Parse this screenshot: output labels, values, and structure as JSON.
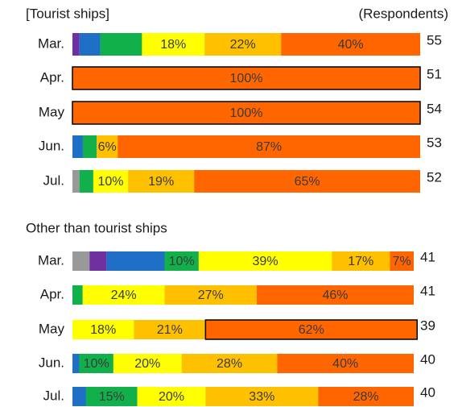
{
  "chart_data": [
    {
      "type": "stacked-barh",
      "title": "[Tourist ships]",
      "respondents_label": "(Respondents)",
      "categories": [
        "Mar.",
        "Apr.",
        "May",
        "Jun.",
        "Jul."
      ],
      "respondents": [
        55,
        51,
        54,
        53,
        52
      ],
      "xlim": [
        0,
        100
      ],
      "series": [
        {
          "color": "#999999",
          "values": [
            0,
            0,
            0,
            0,
            2
          ],
          "value_labels": [
            null,
            null,
            null,
            null,
            null
          ]
        },
        {
          "color": "#7030a0",
          "values": [
            2,
            0,
            0,
            0,
            0
          ],
          "value_labels": [
            null,
            null,
            null,
            null,
            null
          ]
        },
        {
          "color": "#1f6fc6",
          "values": [
            6,
            0,
            0,
            3,
            0
          ],
          "value_labels": [
            null,
            null,
            null,
            null,
            null
          ]
        },
        {
          "color": "#12b04b",
          "values": [
            12,
            0,
            0,
            4,
            4
          ],
          "value_labels": [
            null,
            null,
            null,
            null,
            null
          ]
        },
        {
          "color": "#ffff00",
          "values": [
            18,
            0,
            0,
            0,
            10
          ],
          "value_labels": [
            "18%",
            null,
            null,
            null,
            "10%"
          ]
        },
        {
          "color": "#ffc000",
          "values": [
            22,
            0,
            0,
            6,
            19
          ],
          "value_labels": [
            "22%",
            null,
            null,
            "6%",
            "19%"
          ]
        },
        {
          "color": "#ff6600",
          "values": [
            40,
            100,
            100,
            87,
            65
          ],
          "value_labels": [
            "40%",
            "100%",
            "100%",
            "87%",
            "65%"
          ]
        }
      ],
      "highlight": [
        {
          "series": 6,
          "category": 1
        },
        {
          "series": 6,
          "category": 2
        }
      ]
    },
    {
      "type": "stacked-barh",
      "title": "Other than tourist ships",
      "categories": [
        "Mar.",
        "Apr.",
        "May",
        "Jun.",
        "Jul."
      ],
      "respondents": [
        41,
        41,
        39,
        40,
        40
      ],
      "xlim": [
        0,
        100
      ],
      "series": [
        {
          "color": "#999999",
          "values": [
            5,
            0,
            0,
            0,
            0
          ],
          "value_labels": [
            null,
            null,
            null,
            null,
            null
          ]
        },
        {
          "color": "#7030a0",
          "values": [
            5,
            0,
            0,
            0,
            0
          ],
          "value_labels": [
            null,
            null,
            null,
            null,
            null
          ]
        },
        {
          "color": "#1f6fc6",
          "values": [
            17,
            0,
            0,
            2,
            4
          ],
          "value_labels": [
            null,
            null,
            null,
            null,
            null
          ]
        },
        {
          "color": "#12b04b",
          "values": [
            10,
            3,
            0,
            10,
            15
          ],
          "value_labels": [
            "10%",
            null,
            null,
            "10%",
            "15%"
          ]
        },
        {
          "color": "#ffff00",
          "values": [
            39,
            24,
            18,
            20,
            20
          ],
          "value_labels": [
            "39%",
            "24%",
            "18%",
            "20%",
            "20%"
          ]
        },
        {
          "color": "#ffc000",
          "values": [
            17,
            27,
            21,
            28,
            33
          ],
          "value_labels": [
            "17%",
            "27%",
            "21%",
            "28%",
            "33%"
          ]
        },
        {
          "color": "#ff6600",
          "values": [
            7,
            46,
            62,
            40,
            28
          ],
          "value_labels": [
            "7%",
            "46%",
            "62%",
            "40%",
            "28%"
          ]
        }
      ],
      "highlight": [
        {
          "series": 6,
          "category": 2
        }
      ]
    }
  ]
}
